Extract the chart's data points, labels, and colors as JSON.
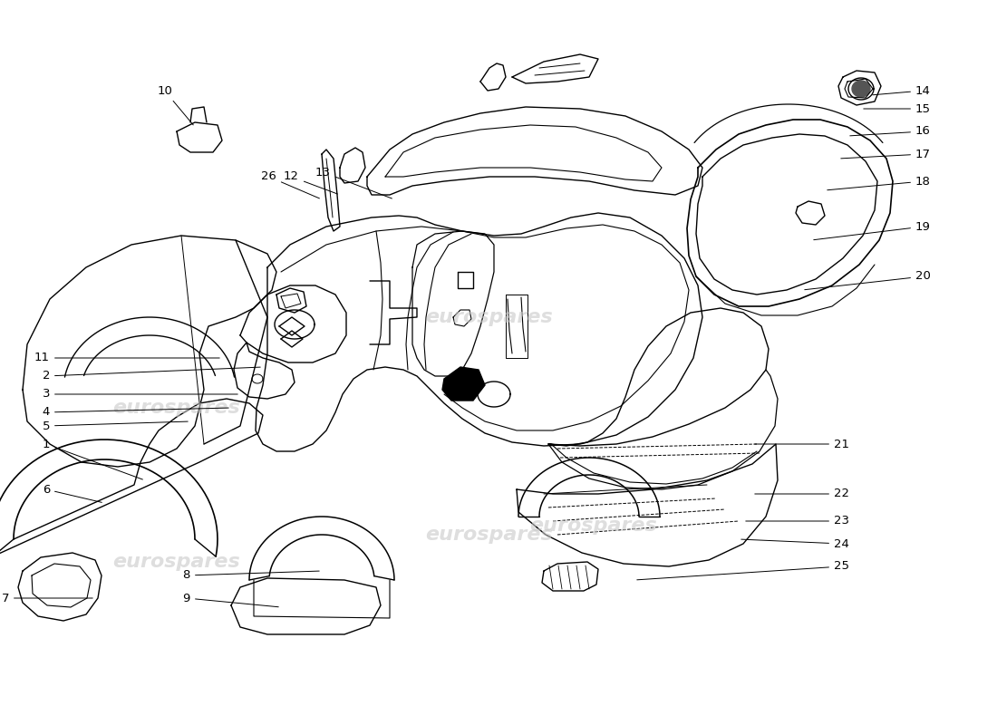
{
  "figsize": [
    11.0,
    8.0
  ],
  "dpi": 100,
  "background_color": "#ffffff",
  "line_color": "#000000",
  "lw": 1.0,
  "watermark_color": "#c8c8c8",
  "labels_left": [
    [
      "1",
      55,
      490,
      160,
      530
    ],
    [
      "2",
      55,
      415,
      290,
      405
    ],
    [
      "3",
      55,
      435,
      265,
      435
    ],
    [
      "4",
      55,
      455,
      255,
      450
    ],
    [
      "5",
      55,
      470,
      210,
      465
    ],
    [
      "6",
      55,
      540,
      115,
      555
    ],
    [
      "7",
      10,
      660,
      105,
      660
    ],
    [
      "8",
      210,
      635,
      355,
      630
    ],
    [
      "9",
      210,
      660,
      310,
      670
    ],
    [
      "10",
      190,
      100,
      215,
      140
    ],
    [
      "11",
      55,
      395,
      245,
      395
    ],
    [
      "26",
      305,
      195,
      355,
      220
    ],
    [
      "12",
      330,
      195,
      375,
      215
    ],
    [
      "13",
      365,
      190,
      435,
      220
    ]
  ],
  "labels_right": [
    [
      "14",
      1010,
      100,
      960,
      105
    ],
    [
      "15",
      1010,
      120,
      950,
      120
    ],
    [
      "16",
      1010,
      145,
      935,
      150
    ],
    [
      "17",
      1010,
      170,
      925,
      175
    ],
    [
      "18",
      1010,
      200,
      910,
      210
    ],
    [
      "19",
      1010,
      250,
      895,
      265
    ],
    [
      "20",
      1010,
      305,
      885,
      320
    ],
    [
      "21",
      920,
      490,
      830,
      490
    ],
    [
      "22",
      920,
      545,
      830,
      545
    ],
    [
      "23",
      920,
      575,
      820,
      575
    ],
    [
      "24",
      920,
      600,
      815,
      595
    ],
    [
      "25",
      920,
      625,
      700,
      640
    ]
  ]
}
